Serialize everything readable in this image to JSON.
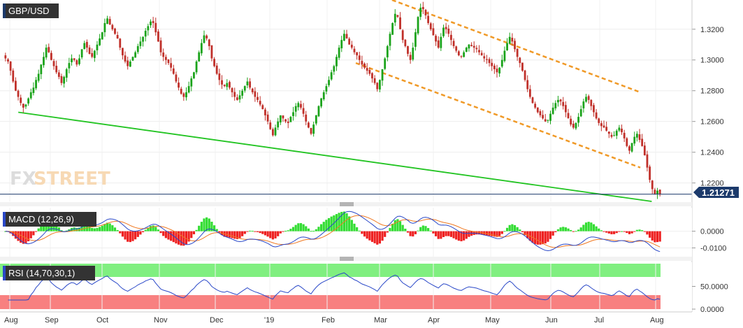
{
  "chart_data": [
    {
      "type": "candlestick",
      "title": "GBP/USD",
      "last_price": "1.21271",
      "x_tick_labels": [
        "Aug",
        "Sep",
        "Oct",
        "Nov",
        "Dec",
        "'19",
        "Feb",
        "Mar",
        "Apr",
        "May",
        "Jun",
        "Jul",
        "Aug"
      ],
      "y_tick_labels": [
        "1.3200",
        "1.3000",
        "1.2800",
        "1.2600",
        "1.2400",
        "1.2200"
      ],
      "ylim": [
        1.208,
        1.339
      ],
      "close_series": [
        1.301,
        1.299,
        1.293,
        1.286,
        1.28,
        1.276,
        1.272,
        1.269,
        1.271,
        1.275,
        1.279,
        1.282,
        1.287,
        1.291,
        1.297,
        1.302,
        1.308,
        1.305,
        1.3,
        1.296,
        1.292,
        1.289,
        1.285,
        1.289,
        1.294,
        1.298,
        1.301,
        1.3,
        1.297,
        1.301,
        1.307,
        1.311,
        1.308,
        1.304,
        1.302,
        1.306,
        1.31,
        1.314,
        1.318,
        1.324,
        1.327,
        1.323,
        1.32,
        1.317,
        1.314,
        1.308,
        1.303,
        1.299,
        1.296,
        1.299,
        1.302,
        1.305,
        1.309,
        1.312,
        1.315,
        1.319,
        1.322,
        1.325,
        1.324,
        1.318,
        1.312,
        1.305,
        1.302,
        1.3,
        1.298,
        1.295,
        1.291,
        1.286,
        1.282,
        1.278,
        1.276,
        1.279,
        1.283,
        1.288,
        1.292,
        1.299,
        1.305,
        1.311,
        1.316,
        1.314,
        1.309,
        1.301,
        1.296,
        1.291,
        1.287,
        1.284,
        1.283,
        1.285,
        1.282,
        1.279,
        1.276,
        1.274,
        1.277,
        1.28,
        1.283,
        1.286,
        1.282,
        1.279,
        1.276,
        1.274,
        1.271,
        1.268,
        1.264,
        1.26,
        1.255,
        1.251,
        1.256,
        1.26,
        1.264,
        1.262,
        1.26,
        1.259,
        1.263,
        1.266,
        1.27,
        1.272,
        1.269,
        1.265,
        1.26,
        1.256,
        1.252,
        1.258,
        1.264,
        1.27,
        1.275,
        1.279,
        1.283,
        1.287,
        1.292,
        1.296,
        1.302,
        1.308,
        1.313,
        1.317,
        1.314,
        1.31,
        1.308,
        1.305,
        1.303,
        1.3,
        1.297,
        1.295,
        1.293,
        1.291,
        1.288,
        1.285,
        1.281,
        1.287,
        1.294,
        1.301,
        1.309,
        1.317,
        1.324,
        1.33,
        1.328,
        1.32,
        1.313,
        1.309,
        1.304,
        1.3,
        1.308,
        1.318,
        1.328,
        1.334,
        1.333,
        1.329,
        1.324,
        1.32,
        1.316,
        1.312,
        1.308,
        1.315,
        1.321,
        1.32,
        1.317,
        1.313,
        1.309,
        1.306,
        1.303,
        1.302,
        1.305,
        1.308,
        1.31,
        1.309,
        1.308,
        1.307,
        1.305,
        1.303,
        1.301,
        1.3,
        1.298,
        1.296,
        1.294,
        1.292,
        1.295,
        1.3,
        1.306,
        1.311,
        1.315,
        1.312,
        1.307,
        1.302,
        1.298,
        1.293,
        1.287,
        1.281,
        1.276,
        1.272,
        1.269,
        1.266,
        1.264,
        1.262,
        1.26,
        1.261,
        1.265,
        1.269,
        1.272,
        1.274,
        1.273,
        1.27,
        1.266,
        1.262,
        1.258,
        1.256,
        1.259,
        1.263,
        1.268,
        1.273,
        1.276,
        1.274,
        1.27,
        1.266,
        1.262,
        1.259,
        1.257,
        1.256,
        1.254,
        1.252,
        1.25,
        1.251,
        1.254,
        1.256,
        1.253,
        1.249,
        1.244,
        1.241,
        1.246,
        1.25,
        1.252,
        1.248,
        1.244,
        1.238,
        1.23,
        1.222,
        1.216,
        1.213,
        1.215,
        1.2127
      ],
      "channel_upper": {
        "start": [
          1.339,
          0.578
        ],
        "end": [
          1.279,
          0.948
        ]
      },
      "channel_lower": {
        "start": [
          1.298,
          0.524
        ],
        "end": [
          1.23,
          0.948
        ]
      },
      "support_line": {
        "start": [
          1.266,
          0.021
        ],
        "end": [
          1.208,
          0.965
        ]
      },
      "colors": {
        "up": "#1aa31a",
        "down": "#c0302a",
        "channel": "#f09a28",
        "support": "#22c422",
        "price_label_bg": "#1c3a6b"
      }
    },
    {
      "type": "macd",
      "title": "MACD (12,26,9)",
      "y_tick_labels": [
        "0.0000",
        "-0.0100"
      ],
      "colors": {
        "macd": "#2a48c8",
        "signal": "#f07820",
        "hist_pos": "#33dd33",
        "hist_neg": "#ee2020"
      }
    },
    {
      "type": "rsi",
      "title": "RSI (14,70,30,1)",
      "y_tick_labels": [
        "50.0000",
        "0.0000"
      ],
      "colors": {
        "line": "#2a48c8",
        "overbought": "#80ef80",
        "oversold": "#f88080"
      }
    }
  ],
  "watermark": {
    "fx": "FX",
    "street": "STREET"
  }
}
